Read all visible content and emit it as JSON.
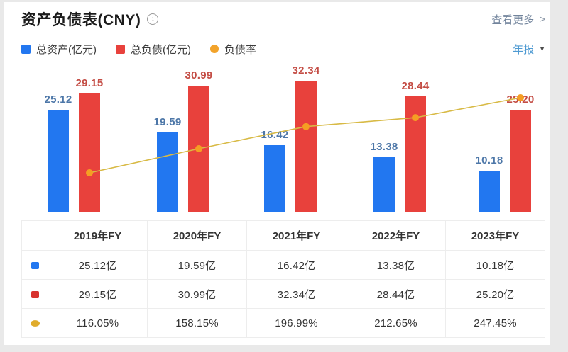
{
  "header": {
    "title": "资产负债表(CNY)",
    "view_more": "查看更多"
  },
  "icons": {
    "info_glyph": "i",
    "chevron_right": ">",
    "caret_down": "▼"
  },
  "period_selector": {
    "value": "年报"
  },
  "legend": {
    "items": [
      {
        "label": "总资产(亿元)",
        "color": "#2277f0",
        "shape": "square"
      },
      {
        "label": "总负债(亿元)",
        "color": "#e8413c",
        "shape": "square"
      },
      {
        "label": "负债率",
        "color": "#f2a32b",
        "shape": "circle"
      }
    ]
  },
  "chart_data": {
    "type": "bar",
    "title": "资产负债表(CNY)",
    "categories": [
      "2019年FY",
      "2020年FY",
      "2021年FY",
      "2022年FY",
      "2023年FY"
    ],
    "series": [
      {
        "name": "总资产(亿元)",
        "type": "bar",
        "color": "#2277f0",
        "label_color": "#4d77a8",
        "unit": "亿元",
        "values": [
          25.12,
          19.59,
          16.42,
          13.38,
          10.18
        ]
      },
      {
        "name": "总负债(亿元)",
        "type": "bar",
        "color": "#e8413c",
        "label_color": "#c44d45",
        "unit": "亿元",
        "values": [
          29.15,
          30.99,
          32.34,
          28.44,
          25.2
        ]
      },
      {
        "name": "负债率",
        "type": "line",
        "color": "#d8ba45",
        "point_color": "#f59e23",
        "unit": "%",
        "values": [
          116.05,
          158.15,
          196.99,
          212.65,
          247.45
        ]
      }
    ],
    "xlabel": "",
    "ylabel": "",
    "grid": false,
    "legend_position": "top",
    "value_labels": true
  },
  "table": {
    "headers": [
      "2019年FY",
      "2020年FY",
      "2021年FY",
      "2022年FY",
      "2023年FY"
    ],
    "rows": [
      {
        "marker_color": "#2277f0",
        "marker_shape": "square",
        "values": [
          "25.12亿",
          "19.59亿",
          "16.42亿",
          "13.38亿",
          "10.18亿"
        ]
      },
      {
        "marker_color": "#d8332e",
        "marker_shape": "square",
        "values": [
          "29.15亿",
          "30.99亿",
          "32.34亿",
          "28.44亿",
          "25.20亿"
        ]
      },
      {
        "marker_color": "#e0ac2c",
        "marker_shape": "ellipse",
        "values": [
          "116.05%",
          "158.15%",
          "196.99%",
          "212.65%",
          "247.45%"
        ]
      }
    ]
  }
}
